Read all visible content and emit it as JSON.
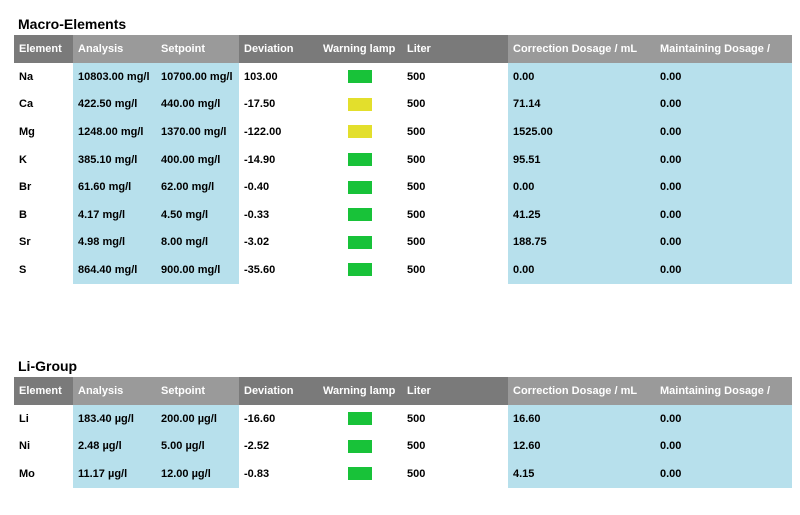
{
  "headers": [
    "Element",
    "Analysis",
    "Setpoint",
    "Deviation",
    "Warning lamp",
    "Liter",
    "Correction Dosage / mL",
    "Maintaining Dosage /"
  ],
  "lamp_colors": {
    "green": "#18c239",
    "yellow": "#e3df2c"
  },
  "macro": {
    "title": "Macro-Elements",
    "rows": [
      {
        "element": "Na",
        "analysis": "10803.00 mg/l",
        "setpoint": "10700.00 mg/l",
        "deviation": "103.00",
        "lamp": "green",
        "liter": "500",
        "correction": "0.00",
        "maintaining": "0.00"
      },
      {
        "element": "Ca",
        "analysis": "422.50 mg/l",
        "setpoint": "440.00 mg/l",
        "deviation": "-17.50",
        "lamp": "yellow",
        "liter": "500",
        "correction": "71.14",
        "maintaining": "0.00"
      },
      {
        "element": "Mg",
        "analysis": "1248.00 mg/l",
        "setpoint": "1370.00 mg/l",
        "deviation": "-122.00",
        "lamp": "yellow",
        "liter": "500",
        "correction": "1525.00",
        "maintaining": "0.00"
      },
      {
        "element": "K",
        "analysis": "385.10 mg/l",
        "setpoint": "400.00 mg/l",
        "deviation": "-14.90",
        "lamp": "green",
        "liter": "500",
        "correction": "95.51",
        "maintaining": "0.00"
      },
      {
        "element": "Br",
        "analysis": "61.60 mg/l",
        "setpoint": "62.00 mg/l",
        "deviation": "-0.40",
        "lamp": "green",
        "liter": "500",
        "correction": "0.00",
        "maintaining": "0.00"
      },
      {
        "element": "B",
        "analysis": "4.17 mg/l",
        "setpoint": "4.50 mg/l",
        "deviation": "-0.33",
        "lamp": "green",
        "liter": "500",
        "correction": "41.25",
        "maintaining": "0.00"
      },
      {
        "element": "Sr",
        "analysis": "4.98 mg/l",
        "setpoint": "8.00 mg/l",
        "deviation": "-3.02",
        "lamp": "green",
        "liter": "500",
        "correction": "188.75",
        "maintaining": "0.00"
      },
      {
        "element": "S",
        "analysis": "864.40 mg/l",
        "setpoint": "900.00 mg/l",
        "deviation": "-35.60",
        "lamp": "green",
        "liter": "500",
        "correction": "0.00",
        "maintaining": "0.00"
      }
    ]
  },
  "li_group": {
    "title": "Li-Group",
    "rows": [
      {
        "element": "Li",
        "analysis": "183.40 µg/l",
        "setpoint": "200.00 µg/l",
        "deviation": "-16.60",
        "lamp": "green",
        "liter": "500",
        "correction": "16.60",
        "maintaining": "0.00"
      },
      {
        "element": "Ni",
        "analysis": "2.48 µg/l",
        "setpoint": "5.00 µg/l",
        "deviation": "-2.52",
        "lamp": "green",
        "liter": "500",
        "correction": "12.60",
        "maintaining": "0.00"
      },
      {
        "element": "Mo",
        "analysis": "11.17 µg/l",
        "setpoint": "12.00 µg/l",
        "deviation": "-0.83",
        "lamp": "green",
        "liter": "500",
        "correction": "4.15",
        "maintaining": "0.00"
      }
    ]
  }
}
